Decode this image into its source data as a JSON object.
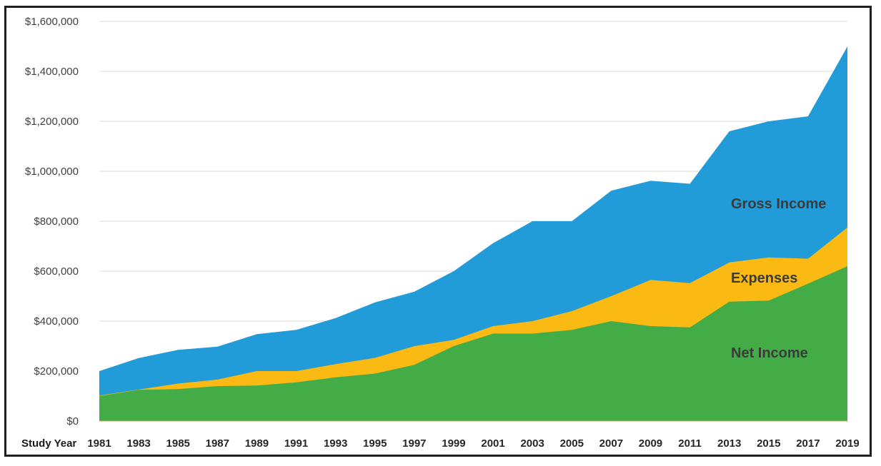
{
  "chart_data": {
    "type": "area",
    "stacked": false,
    "xlabel": "Study Year",
    "ylabel": "",
    "ylim": [
      0,
      1600000
    ],
    "yticks": [
      "$0",
      "$200,000",
      "$400,000",
      "$600,000",
      "$800,000",
      "$1,000,000",
      "$1,200,000",
      "$1,400,000",
      "$1,600,000"
    ],
    "ytick_values": [
      0,
      200000,
      400000,
      600000,
      800000,
      1000000,
      1200000,
      1400000,
      1600000
    ],
    "x": [
      1981,
      1983,
      1985,
      1987,
      1989,
      1991,
      1993,
      1995,
      1997,
      1999,
      2001,
      2003,
      2005,
      2007,
      2009,
      2011,
      2013,
      2015,
      2017,
      2019
    ],
    "grid": "horizontal",
    "legend": "inline labels",
    "series": [
      {
        "name": "Gross Income",
        "color": "#229cd8",
        "values": [
          200000,
          252000,
          285000,
          298000,
          348000,
          365000,
          412000,
          475000,
          518000,
          600000,
          712000,
          800000,
          800000,
          922000,
          962000,
          950000,
          1160000,
          1200000,
          1220000,
          1500000
        ]
      },
      {
        "name": "Expenses",
        "color": "#fbb913",
        "values": [
          102000,
          126000,
          150000,
          166000,
          200000,
          200000,
          228000,
          253000,
          300000,
          325000,
          380000,
          400000,
          440000,
          500000,
          565000,
          552000,
          635000,
          655000,
          650000,
          775000
        ]
      },
      {
        "name": "Net Income",
        "color": "#43ac47",
        "values": [
          100000,
          125000,
          128000,
          140000,
          142000,
          155000,
          175000,
          190000,
          225000,
          300000,
          350000,
          350000,
          365000,
          400000,
          380000,
          375000,
          478000,
          482000,
          550000,
          620000
        ]
      }
    ]
  }
}
